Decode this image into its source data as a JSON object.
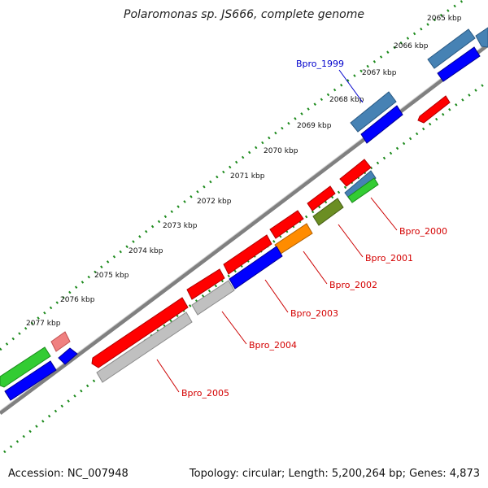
{
  "title": "Polaromonas sp. JS666, complete genome",
  "footer": {
    "accession": "Accession: NC_007948",
    "stats": "Topology: circular; Length: 5,200,264 bp; Genes: 4,873"
  },
  "colors": {
    "dots": "#1c8a1c",
    "backbone": "#808080",
    "red": "#ff0000",
    "pink": "#f08080",
    "blue": "#0000ff",
    "steelblue": "#4682b4",
    "green": "#33cc33",
    "olive": "#6b8e23",
    "orange": "#ff8c00",
    "gray": "#c0c0c0",
    "label_red": "#d40000",
    "label_blue": "#0000cc"
  },
  "kbp_ticks": [
    "2065 kbp",
    "2066 kbp",
    "2067 kbp",
    "2068 kbp",
    "2069 kbp",
    "2070 kbp",
    "2071 kbp",
    "2072 kbp",
    "2073 kbp",
    "2074 kbp",
    "2075 kbp",
    "2076 kbp",
    "2077 kbp"
  ],
  "gene_labels": [
    {
      "text": "Bpro_1999",
      "color": "label_blue"
    },
    {
      "text": "Bpro_2000",
      "color": "label_red"
    },
    {
      "text": "Bpro_2001",
      "color": "label_red"
    },
    {
      "text": "Bpro_2002",
      "color": "label_red"
    },
    {
      "text": "Bpro_2003",
      "color": "label_red"
    },
    {
      "text": "Bpro_2004",
      "color": "label_red"
    },
    {
      "text": "Bpro_2005",
      "color": "label_red"
    }
  ]
}
